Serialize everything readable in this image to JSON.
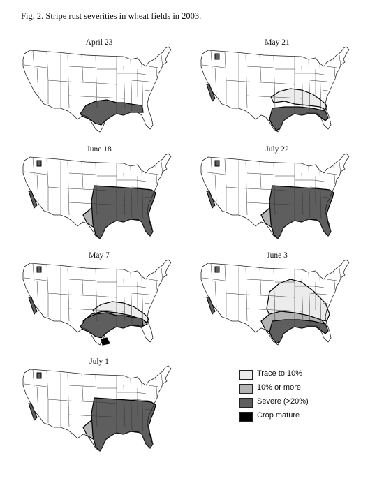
{
  "figure_title": "Fig. 2.  Stripe rust severities in wheat fields in 2003.",
  "colors": {
    "trace": "#ececec",
    "ten_or_more": "#b3b3b3",
    "severe": "#5e5e5e",
    "crop_mature": "#000000",
    "outline": "#333333"
  },
  "maps": [
    {
      "title": "April 23",
      "pnw": false,
      "cal": false,
      "layers": [
        "severe"
      ]
    },
    {
      "title": "May 7",
      "pnw": true,
      "cal": true,
      "layers": [
        "trace",
        "ten_or_more",
        "severe",
        "crop_mature"
      ]
    },
    {
      "title": "May 21",
      "pnw": true,
      "cal": true,
      "layers": [
        "trace",
        "severe_south"
      ]
    },
    {
      "title": "June 3",
      "pnw": true,
      "cal": true,
      "layers": [
        "trace_large",
        "ten_or_more",
        "severe_south"
      ]
    },
    {
      "title": "June 18",
      "pnw": true,
      "cal": true,
      "layers": [
        "trace",
        "ten_or_more",
        "severe_east"
      ]
    },
    {
      "title": "July 1",
      "pnw": true,
      "cal": true,
      "layers": [
        "trace",
        "ten_or_more",
        "severe_east"
      ]
    },
    {
      "title": "July 22",
      "pnw": true,
      "cal": true,
      "layers": [
        "ten_or_more",
        "severe_east"
      ]
    }
  ],
  "legend": [
    {
      "key": "trace",
      "label": "Trace to 10%"
    },
    {
      "key": "ten_or_more",
      "label": "10% or more"
    },
    {
      "key": "severe",
      "label": "Severe (>20%)"
    },
    {
      "key": "crop_mature",
      "label": "Crop mature"
    }
  ]
}
